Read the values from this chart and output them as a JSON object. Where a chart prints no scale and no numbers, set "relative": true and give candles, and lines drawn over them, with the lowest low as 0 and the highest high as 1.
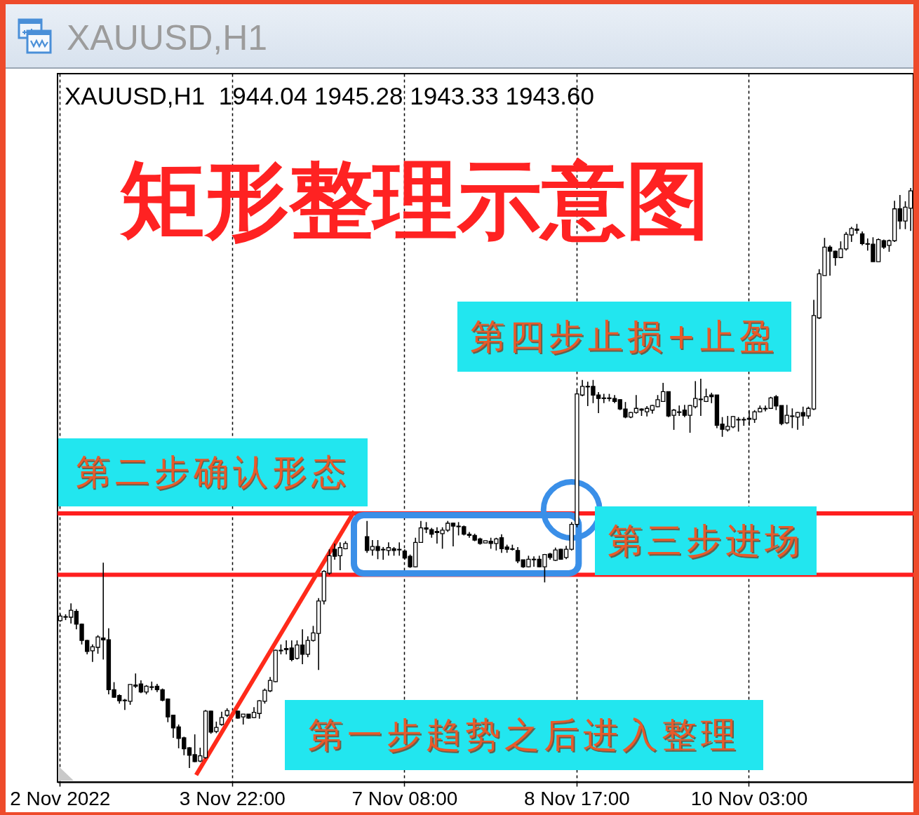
{
  "chart_data": {
    "type": "candlestick",
    "title": "矩形整理示意图",
    "subtitle": "XAUUSD,H1  1944.04 1945.28 1943.33 1943.60",
    "annotations": [
      "XAUUSD,H1",
      "第四步止损+止盈",
      "第二步确认形态",
      "第三步进场",
      "第一步趋势之后进入整理"
    ],
    "relative": true,
    "grid": "x",
    "ref_lines": [
      {
        "axis": "y",
        "value": 0.439,
        "color": "#ff1f1f"
      },
      {
        "axis": "y",
        "value": 0.333,
        "color": "#ff1f1f"
      }
    ],
    "categories": [
      "2 Nov 2022",
      null,
      null,
      null,
      null,
      null,
      null,
      null,
      null,
      null,
      null,
      null,
      null,
      null,
      null,
      null,
      null,
      null,
      null,
      null,
      null,
      null,
      null,
      null,
      null,
      null,
      null,
      null,
      null,
      null,
      null,
      null,
      "3 Nov 22:00",
      null,
      null,
      null,
      null,
      null,
      null,
      null,
      null,
      null,
      null,
      null,
      null,
      null,
      null,
      null,
      null,
      null,
      null,
      null,
      null,
      null,
      null,
      null,
      null,
      null,
      null,
      null,
      null,
      null,
      null,
      null,
      "7 Nov 08:00",
      null,
      null,
      null,
      null,
      null,
      null,
      null,
      null,
      null,
      null,
      null,
      null,
      null,
      null,
      null,
      null,
      null,
      null,
      null,
      null,
      null,
      null,
      null,
      null,
      null,
      null,
      null,
      null,
      null,
      null,
      null,
      "8 Nov 17:00",
      null,
      null,
      null,
      null,
      null,
      null,
      null,
      null,
      null,
      null,
      null,
      null,
      null,
      null,
      null,
      null,
      null,
      null,
      null,
      null,
      null,
      null,
      null,
      null,
      null,
      null,
      null,
      null,
      null,
      null,
      null,
      "10 Nov 03:00",
      null,
      null,
      null,
      null,
      null,
      null,
      null,
      null,
      null,
      null,
      null,
      null,
      null,
      null,
      null,
      null,
      null,
      null,
      null,
      null,
      null,
      null,
      null,
      null,
      null,
      null,
      null,
      null,
      null,
      null
    ],
    "ohlc": [
      [
        0.254,
        0.266,
        0.252,
        0.262
      ],
      [
        0.26,
        0.265,
        0.255,
        0.261
      ],
      [
        0.26,
        0.284,
        0.249,
        0.272
      ],
      [
        0.27,
        0.274,
        0.239,
        0.248
      ],
      [
        0.248,
        0.249,
        0.213,
        0.22
      ],
      [
        0.22,
        0.221,
        0.196,
        0.201
      ],
      [
        0.202,
        0.213,
        0.183,
        0.209
      ],
      [
        0.208,
        0.229,
        0.197,
        0.226
      ],
      [
        0.224,
        0.354,
        0.187,
        0.221
      ],
      [
        0.221,
        0.241,
        0.127,
        0.135
      ],
      [
        0.135,
        0.148,
        0.121,
        0.122
      ],
      [
        0.125,
        0.127,
        0.111,
        0.116
      ],
      [
        0.117,
        0.119,
        0.1,
        0.116
      ],
      [
        0.115,
        0.144,
        0.109,
        0.144
      ],
      [
        0.143,
        0.163,
        0.138,
        0.141
      ],
      [
        0.145,
        0.151,
        0.129,
        0.131
      ],
      [
        0.131,
        0.143,
        0.127,
        0.141
      ],
      [
        0.14,
        0.149,
        0.134,
        0.139
      ],
      [
        0.141,
        0.145,
        0.131,
        0.135
      ],
      [
        0.135,
        0.137,
        0.115,
        0.117
      ],
      [
        0.119,
        0.12,
        0.079,
        0.088
      ],
      [
        0.091,
        0.091,
        0.052,
        0.069
      ],
      [
        0.071,
        0.075,
        0.034,
        0.051
      ],
      [
        0.052,
        0.054,
        0.022,
        0.033
      ],
      [
        0.035,
        0.036,
        0,
        0.022
      ],
      [
        0.023,
        0.058,
        0.01,
        0.011
      ],
      [
        0.012,
        0.035,
        0.01,
        0.021
      ],
      [
        0.018,
        0.1,
        0.016,
        0.098
      ],
      [
        0.098,
        0.099,
        0.059,
        0.062
      ],
      [
        0.063,
        0.08,
        0.06,
        0.07
      ],
      [
        0.075,
        0.097,
        0.073,
        0.087
      ],
      [
        0.091,
        0.103,
        0.088,
        0.099
      ],
      null,
      [
        0.098,
        0.099,
        0.085,
        0.086
      ],
      [
        0.088,
        0.093,
        0.075,
        0.093
      ],
      [
        0.093,
        0.093,
        0.085,
        0.086
      ],
      [
        0.087,
        0.105,
        0.086,
        0.096
      ],
      [
        0.094,
        0.117,
        0.085,
        0.116
      ],
      [
        0.115,
        0.137,
        0.111,
        0.134
      ],
      [
        0.133,
        0.157,
        0.131,
        0.151
      ],
      [
        0.149,
        0.204,
        0.148,
        0.203
      ],
      [
        0.203,
        0.213,
        0.196,
        0.202
      ],
      [
        0.206,
        0.22,
        0.196,
        0.204
      ],
      [
        0.207,
        0.22,
        0.184,
        0.187
      ],
      [
        0.189,
        0.22,
        0.187,
        0.212
      ],
      [
        0.212,
        0.239,
        0.179,
        0.196
      ],
      [
        0.196,
        0.227,
        0.191,
        0.22
      ],
      [
        0.22,
        0.245,
        0.218,
        0.233
      ],
      [
        0.232,
        0.293,
        0.169,
        0.288
      ],
      [
        0.288,
        0.341,
        0.282,
        0.339
      ],
      [
        0.336,
        0.377,
        0.333,
        0.366
      ],
      [
        0.377,
        0.387,
        0.359,
        0.365
      ],
      [
        0.366,
        0.389,
        0.341,
        0.38
      ],
      [
        0.378,
        0.391,
        0.377,
        0.387
      ],
      null,
      null,
      null,
      [
        0.399,
        0.426,
        0.371,
        0.375
      ],
      [
        0.376,
        0.393,
        0.366,
        0.382
      ],
      [
        0.382,
        0.393,
        0.36,
        0.375
      ],
      [
        0.377,
        0.381,
        0.359,
        0.376
      ],
      [
        0.375,
        0.389,
        0.366,
        0.38
      ],
      [
        0.378,
        0.381,
        0.366,
        0.375
      ],
      [
        0.377,
        0.389,
        0.366,
        0.376
      ],
      [
        0.374,
        0.377,
        0.359,
        0.362
      ],
      [
        0.365,
        0.368,
        0.345,
        0.347
      ],
      [
        0.347,
        0.397,
        0.346,
        0.389
      ],
      [
        0.389,
        0.426,
        0.389,
        0.414
      ],
      [
        0.414,
        0.424,
        0.405,
        0.412
      ],
      [
        0.411,
        0.414,
        0.397,
        0.403
      ],
      [
        0.408,
        0.415,
        0.387,
        0.406
      ],
      [
        0.404,
        0.415,
        0.378,
        0.41
      ],
      [
        0.41,
        0.426,
        0.407,
        0.422
      ],
      [
        0.422,
        0.423,
        0.382,
        0.417
      ],
      [
        0.417,
        0.424,
        0.401,
        0.416
      ],
      [
        0.416,
        0.418,
        0.401,
        0.403
      ],
      [
        0.403,
        0.407,
        0.397,
        0.401
      ],
      [
        0.401,
        0.404,
        0.391,
        0.393
      ],
      [
        0.395,
        0.397,
        0.385,
        0.387
      ],
      [
        0.388,
        0.392,
        0.388,
        0.392
      ],
      [
        0.391,
        0.397,
        0.378,
        0.387
      ],
      [
        0.387,
        0.397,
        0.375,
        0.395
      ],
      [
        0.397,
        0.403,
        0.371,
        0.378
      ],
      [
        0.381,
        0.385,
        0.371,
        0.377
      ],
      [
        0.378,
        0.385,
        0.375,
        0.377
      ],
      [
        0.375,
        0.381,
        0.353,
        0.357
      ],
      [
        0.359,
        0.359,
        0.345,
        0.347
      ],
      [
        0.347,
        0.366,
        0.346,
        0.36
      ],
      [
        0.36,
        0.365,
        0.347,
        0.359
      ],
      [
        0.36,
        0.366,
        0.346,
        0.347
      ],
      [
        0.347,
        0.369,
        0.32,
        0.368
      ],
      [
        0.369,
        0.371,
        0.359,
        0.363
      ],
      [
        0.358,
        0.38,
        0.357,
        0.376
      ],
      [
        0.377,
        0.378,
        0.359,
        0.36
      ],
      [
        0.363,
        0.383,
        0.36,
        0.377
      ],
      [
        0.377,
        0.424,
        0.375,
        0.42
      ],
      [
        0.42,
        0.651,
        0.415,
        0.645
      ],
      [
        0.643,
        0.669,
        0.641,
        0.658
      ],
      [
        0.658,
        0.666,
        0.624,
        0.657
      ],
      [
        0.658,
        0.669,
        0.629,
        0.643
      ],
      [
        0.643,
        0.648,
        0.612,
        0.637
      ],
      [
        0.638,
        0.645,
        0.629,
        0.637
      ],
      [
        0.638,
        0.645,
        0.632,
        0.637
      ],
      [
        0.637,
        0.643,
        0.629,
        0.632
      ],
      [
        0.635,
        0.636,
        0.617,
        0.619
      ],
      [
        0.619,
        0.631,
        0.603,
        0.605
      ],
      [
        0.605,
        0.614,
        0.603,
        0.613
      ],
      [
        0.613,
        0.643,
        0.611,
        0.62
      ],
      [
        0.619,
        0.62,
        0.607,
        0.617
      ],
      [
        0.614,
        0.624,
        0.606,
        0.62
      ],
      [
        0.617,
        0.626,
        0.611,
        0.625
      ],
      [
        0.623,
        0.643,
        0.622,
        0.635
      ],
      [
        0.632,
        0.664,
        0.632,
        0.649
      ],
      [
        0.649,
        0.649,
        0.605,
        0.607
      ],
      [
        0.608,
        0.619,
        0.583,
        0.617
      ],
      [
        0.614,
        0.625,
        0.607,
        0.613
      ],
      [
        0.617,
        0.626,
        0.605,
        0.608
      ],
      [
        0.608,
        0.626,
        0.578,
        0.625
      ],
      [
        0.623,
        0.667,
        0.62,
        0.637
      ],
      [
        0.636,
        0.671,
        0.607,
        0.635
      ],
      [
        0.632,
        0.654,
        0.631,
        0.64
      ],
      [
        0.643,
        0.647,
        0.629,
        0.64
      ],
      [
        0.643,
        0.643,
        0.586,
        0.591
      ],
      [
        0.593,
        0.605,
        0.571,
        0.584
      ],
      [
        0.583,
        0.607,
        0.58,
        0.589
      ],
      [
        0.588,
        0.607,
        0.586,
        0.606
      ],
      [
        0.601,
        0.605,
        0.58,
        0.6
      ],
      [
        0.601,
        0.605,
        0.59,
        0.6
      ],
      [
        0.603,
        0.617,
        0.59,
        0.601
      ],
      [
        0.601,
        0.617,
        0.595,
        0.614
      ],
      [
        0.614,
        0.625,
        0.613,
        0.62
      ],
      [
        0.62,
        0.625,
        0.615,
        0.619
      ],
      [
        0.62,
        0.64,
        0.619,
        0.638
      ],
      [
        0.64,
        0.643,
        0.617,
        0.624
      ],
      [
        0.625,
        0.625,
        0.591,
        0.594
      ],
      [
        0.595,
        0.626,
        0.593,
        0.608
      ],
      [
        0.607,
        0.62,
        0.586,
        0.606
      ],
      [
        0.605,
        0.614,
        0.583,
        0.613
      ],
      [
        0.613,
        0.623,
        0.59,
        0.607
      ],
      [
        0.607,
        0.623,
        0.602,
        0.62
      ],
      [
        0.619,
        0.807,
        0.617,
        0.78
      ],
      [
        0.776,
        0.86,
        0.774,
        0.852
      ],
      [
        0.849,
        0.914,
        0.849,
        0.898
      ],
      [
        0.898,
        0.901,
        0.849,
        0.891
      ],
      [
        0.891,
        0.892,
        0.866,
        0.88
      ],
      [
        0.88,
        0.908,
        0.879,
        0.895
      ],
      [
        0.895,
        0.924,
        0.892,
        0.92
      ],
      [
        0.919,
        0.933,
        0.907,
        0.93
      ],
      [
        0.929,
        0.938,
        0.921,
        0.927
      ],
      [
        0.921,
        0.925,
        0.901,
        0.904
      ],
      [
        0.904,
        0.913,
        0.892,
        0.903
      ],
      [
        0.903,
        0.915,
        0.873,
        0.873
      ],
      [
        0.873,
        0.913,
        0.873,
        0.911
      ],
      [
        0.909,
        0.911,
        0.895,
        0.898
      ],
      [
        0.901,
        0.911,
        0.89,
        0.909
      ],
      [
        0.909,
        0.978,
        0.907,
        0.964
      ],
      [
        0.964,
        0.988,
        0.929,
        0.943
      ],
      [
        0.943,
        0.977,
        0.929,
        0.967
      ],
      [
        0.965,
        1,
        0.926,
        0.995
      ]
    ]
  }
}
